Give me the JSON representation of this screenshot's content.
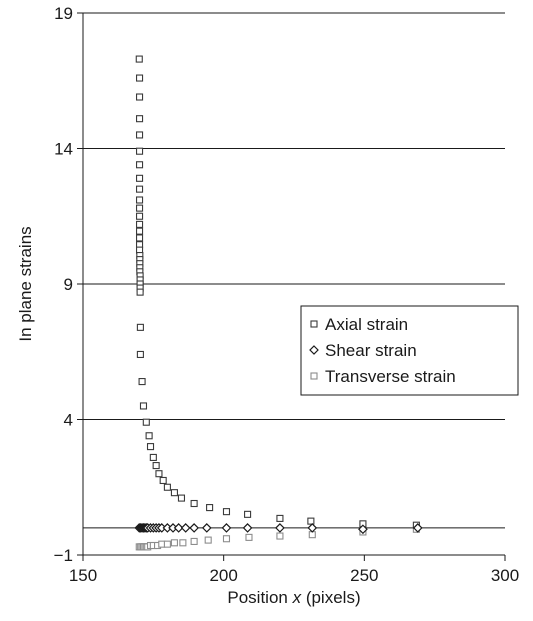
{
  "chart_data": {
    "type": "scatter",
    "title": "",
    "xlabel_prefix": "Position ",
    "xlabel_var": "x",
    "xlabel_suffix": " (pixels)",
    "ylabel": "In plane strains",
    "xlim": [
      150,
      300
    ],
    "ylim": [
      -1,
      19
    ],
    "xticks": [
      150,
      200,
      250,
      300
    ],
    "yticks": [
      -1,
      4,
      9,
      14,
      19
    ],
    "xtick_labels": [
      "150",
      "200",
      "250",
      "300"
    ],
    "ytick_labels": [
      "−1",
      "4",
      "9",
      "14",
      "19"
    ],
    "grid": "horizontal",
    "legend_position": "right",
    "colors": {
      "axial": "#3a3a3a",
      "shear": "#1a1a1a",
      "transverse": "#8c8c8c",
      "axes": "#1a1a1a"
    },
    "series": [
      {
        "name": "Axial strain",
        "marker": "square",
        "x": [
          170.0,
          170.1,
          170.1,
          170.1,
          170.1,
          170.1,
          170.1,
          170.1,
          170.1,
          170.1,
          170.1,
          170.1,
          170.1,
          170.1,
          170.1,
          170.1,
          170.1,
          170.2,
          170.2,
          170.2,
          170.2,
          170.2,
          170.3,
          170.3,
          170.3,
          170.3,
          170.3,
          170.4,
          170.4,
          171.0,
          171.5,
          172.5,
          173.5,
          174.0,
          175.0,
          176.0,
          177.0,
          178.5,
          180.0,
          182.5,
          185.0,
          189.5,
          195.0,
          201.0,
          208.5,
          220.0,
          231.0,
          249.5,
          268.5
        ],
        "y": [
          17.3,
          16.6,
          15.9,
          15.1,
          14.5,
          13.9,
          13.4,
          12.9,
          12.5,
          12.1,
          11.8,
          11.5,
          11.2,
          10.95,
          10.7,
          10.45,
          10.25,
          10.05,
          9.9,
          9.75,
          9.6,
          9.45,
          9.3,
          9.15,
          9.0,
          8.85,
          8.7,
          7.4,
          6.4,
          5.4,
          4.5,
          3.9,
          3.4,
          3.0,
          2.6,
          2.3,
          2.0,
          1.75,
          1.5,
          1.3,
          1.1,
          0.9,
          0.75,
          0.6,
          0.5,
          0.35,
          0.25,
          0.15,
          0.1
        ]
      },
      {
        "name": "Shear strain",
        "marker": "diamond",
        "x": [
          170.0,
          170.5,
          171.0,
          171.5,
          172.0,
          172.5,
          173.0,
          174.0,
          175.0,
          176.0,
          177.0,
          178.0,
          180.0,
          182.0,
          184.0,
          186.5,
          189.5,
          194.0,
          201.0,
          208.5,
          220.0,
          231.5,
          249.5,
          269.0
        ],
        "y": [
          0.0,
          0.0,
          0.0,
          0.0,
          0.0,
          0.0,
          0.0,
          0.0,
          0.0,
          0.0,
          0.0,
          0.0,
          0.0,
          0.0,
          0.0,
          0.0,
          0.0,
          0.0,
          0.0,
          0.0,
          0.0,
          0.0,
          -0.05,
          0.0
        ]
      },
      {
        "name": "Transverse strain",
        "marker": "square",
        "x": [
          170.0,
          170.5,
          171.0,
          171.5,
          172.0,
          172.5,
          173.0,
          174.0,
          175.0,
          176.5,
          178.0,
          180.0,
          182.5,
          185.5,
          189.5,
          194.5,
          201.0,
          209.0,
          220.0,
          231.5,
          249.5,
          268.5
        ],
        "y": [
          -0.7,
          -0.7,
          -0.7,
          -0.7,
          -0.7,
          -0.7,
          -0.7,
          -0.65,
          -0.65,
          -0.65,
          -0.6,
          -0.6,
          -0.55,
          -0.55,
          -0.5,
          -0.45,
          -0.4,
          -0.35,
          -0.3,
          -0.25,
          -0.15,
          -0.05
        ]
      }
    ]
  }
}
